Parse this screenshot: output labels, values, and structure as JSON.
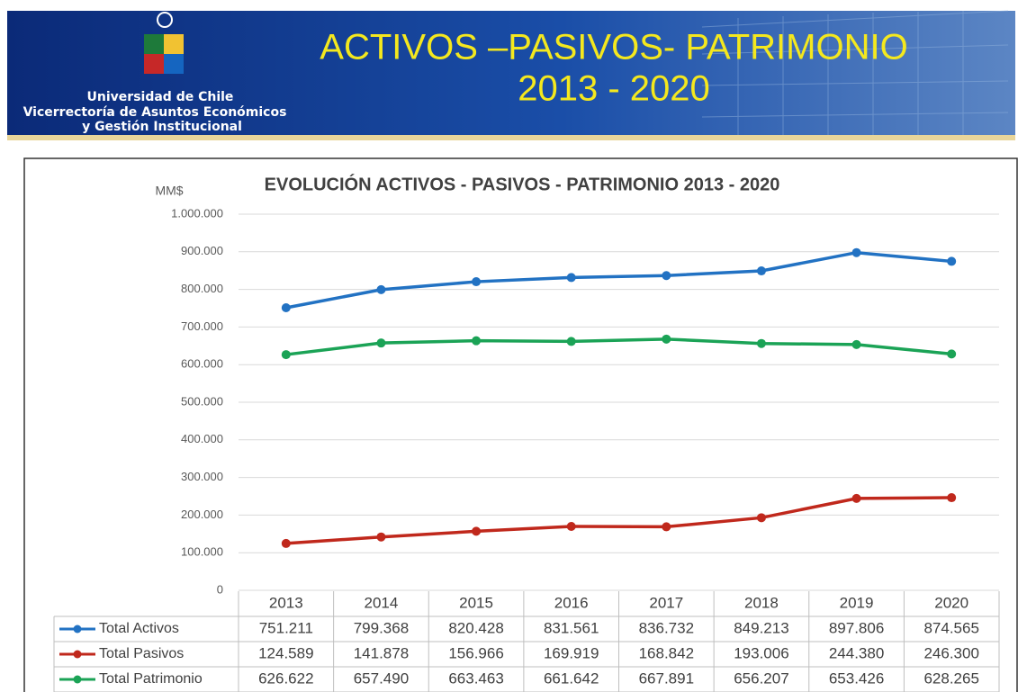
{
  "header": {
    "institution": [
      "Universidad de Chile",
      "Vicerrectoría de Asuntos Económicos",
      "y Gestión Institucional"
    ],
    "title": "ACTIVOS –PASIVOS- PATRIMONIO",
    "subtitle": "2013 - 2020"
  },
  "chart_data": {
    "type": "line",
    "title": "EVOLUCIÓN ACTIVOS - PASIVOS - PATRIMONIO 2013 - 2020",
    "y_label": "MM$",
    "categories": [
      "2013",
      "2014",
      "2015",
      "2016",
      "2017",
      "2018",
      "2019",
      "2020"
    ],
    "ylim": [
      0,
      1000000
    ],
    "yticks": [
      0,
      {
        "value": 100000,
        "label": "100.000"
      },
      {
        "value": 200000,
        "label": "200.000"
      },
      {
        "value": 300000,
        "label": "300.000"
      },
      {
        "value": 400000,
        "label": "400.000"
      },
      {
        "value": 500000,
        "label": "500.000"
      },
      {
        "value": 600000,
        "label": "600.000"
      },
      {
        "value": 700000,
        "label": "700.000"
      },
      {
        "value": 800000,
        "label": "800.000"
      },
      {
        "value": 900000,
        "label": "900.000"
      },
      {
        "value": 1000000,
        "label": "1.000.000"
      }
    ],
    "grid": true,
    "series": [
      {
        "name": "Total Activos",
        "color": "#2272c3",
        "values": [
          751211,
          799368,
          820428,
          831561,
          836732,
          849213,
          897806,
          874565
        ],
        "value_labels": [
          "751.211",
          "799.368",
          "820.428",
          "831.561",
          "836.732",
          "849.213",
          "897.806",
          "874.565"
        ]
      },
      {
        "name": "Total Pasivos",
        "color": "#c0281c",
        "values": [
          124589,
          141878,
          156966,
          169919,
          168842,
          193006,
          244380,
          246300
        ],
        "value_labels": [
          "124.589",
          "141.878",
          "156.966",
          "169.919",
          "168.842",
          "193.006",
          "244.380",
          "246.300"
        ]
      },
      {
        "name": "Total Patrimonio",
        "color": "#1ba356",
        "values": [
          626622,
          657490,
          663463,
          661642,
          667891,
          656207,
          653426,
          628265
        ],
        "value_labels": [
          "626.622",
          "657.490",
          "663.463",
          "661.642",
          "667.891",
          "656.207",
          "653.426",
          "628.265"
        ]
      }
    ]
  }
}
